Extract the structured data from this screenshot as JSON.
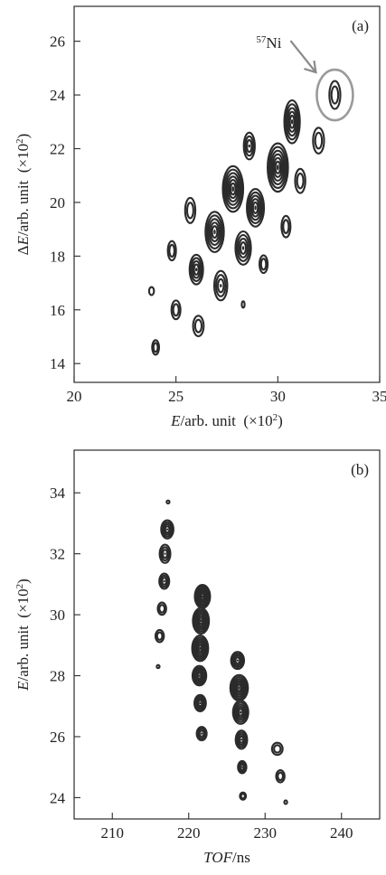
{
  "chart_data": [
    {
      "type": "contour",
      "panel_label": "(a)",
      "xlabel": {
        "italic": "E",
        "rest": "/arb. unit",
        "factor_pre": "(×10",
        "factor_exp": "2",
        "factor_post": ")"
      },
      "ylabel": {
        "prefix": "Δ",
        "italic": "E",
        "rest": "/arb. unit",
        "factor_pre": "(×10",
        "factor_exp": "2",
        "factor_post": ")"
      },
      "xlim": [
        20,
        35
      ],
      "ylim": [
        13.3,
        27.3
      ],
      "xticks": [
        20,
        25,
        30,
        35
      ],
      "yticks": [
        14,
        16,
        18,
        20,
        22,
        24,
        26
      ],
      "annotation": {
        "mass": "57",
        "symbol": "Ni",
        "target": [
          32.8,
          24.0
        ]
      },
      "islands": [
        {
          "x": 24.0,
          "y": 14.6,
          "rx": 0.17,
          "ry": 0.27,
          "levels": 2
        },
        {
          "x": 23.8,
          "y": 16.7,
          "rx": 0.12,
          "ry": 0.15,
          "levels": 1
        },
        {
          "x": 25.0,
          "y": 16.0,
          "rx": 0.22,
          "ry": 0.35,
          "levels": 2
        },
        {
          "x": 24.8,
          "y": 18.2,
          "rx": 0.2,
          "ry": 0.36,
          "levels": 2
        },
        {
          "x": 26.1,
          "y": 15.4,
          "rx": 0.26,
          "ry": 0.38,
          "levels": 2
        },
        {
          "x": 26.0,
          "y": 17.5,
          "rx": 0.33,
          "ry": 0.55,
          "levels": 4
        },
        {
          "x": 25.7,
          "y": 19.7,
          "rx": 0.25,
          "ry": 0.47,
          "levels": 2
        },
        {
          "x": 27.2,
          "y": 16.9,
          "rx": 0.32,
          "ry": 0.55,
          "levels": 3
        },
        {
          "x": 26.9,
          "y": 18.9,
          "rx": 0.45,
          "ry": 0.75,
          "levels": 5
        },
        {
          "x": 28.3,
          "y": 16.2,
          "rx": 0.06,
          "ry": 0.12,
          "levels": 1
        },
        {
          "x": 28.3,
          "y": 18.3,
          "rx": 0.38,
          "ry": 0.62,
          "levels": 4
        },
        {
          "x": 27.8,
          "y": 20.5,
          "rx": 0.5,
          "ry": 0.85,
          "levels": 6
        },
        {
          "x": 29.3,
          "y": 17.7,
          "rx": 0.2,
          "ry": 0.33,
          "levels": 2
        },
        {
          "x": 28.9,
          "y": 19.8,
          "rx": 0.42,
          "ry": 0.7,
          "levels": 5
        },
        {
          "x": 28.6,
          "y": 22.1,
          "rx": 0.27,
          "ry": 0.5,
          "levels": 3
        },
        {
          "x": 30.0,
          "y": 21.3,
          "rx": 0.5,
          "ry": 0.9,
          "levels": 6
        },
        {
          "x": 30.4,
          "y": 19.1,
          "rx": 0.22,
          "ry": 0.4,
          "levels": 2
        },
        {
          "x": 30.7,
          "y": 23.0,
          "rx": 0.38,
          "ry": 0.8,
          "levels": 5
        },
        {
          "x": 31.1,
          "y": 20.8,
          "rx": 0.25,
          "ry": 0.45,
          "levels": 2
        },
        {
          "x": 32.0,
          "y": 22.3,
          "rx": 0.27,
          "ry": 0.48,
          "levels": 2
        },
        {
          "x": 32.8,
          "y": 24.0,
          "rx": 0.27,
          "ry": 0.52,
          "levels": 2
        }
      ]
    },
    {
      "type": "contour",
      "panel_label": "(b)",
      "xlabel": {
        "italic": "TOF",
        "rest": "/ns"
      },
      "ylabel": {
        "italic": "E",
        "rest": "/arb. unit",
        "factor_pre": "(×10",
        "factor_exp": "2",
        "factor_post": ")"
      },
      "xlim": [
        205,
        245
      ],
      "ylim": [
        23.3,
        35.4
      ],
      "xticks": [
        210,
        220,
        230,
        240
      ],
      "yticks": [
        24,
        26,
        28,
        30,
        32,
        34
      ],
      "islands": [
        {
          "x": 217.3,
          "y": 33.7,
          "rx": 0.12,
          "ry": 0.05,
          "levels": 1
        },
        {
          "x": 217.2,
          "y": 32.8,
          "rx": 0.8,
          "ry": 0.3,
          "levels": 4
        },
        {
          "x": 216.9,
          "y": 32.0,
          "rx": 0.7,
          "ry": 0.3,
          "levels": 3
        },
        {
          "x": 216.8,
          "y": 31.1,
          "rx": 0.65,
          "ry": 0.25,
          "levels": 3
        },
        {
          "x": 216.5,
          "y": 30.2,
          "rx": 0.55,
          "ry": 0.2,
          "levels": 2
        },
        {
          "x": 216.2,
          "y": 29.3,
          "rx": 0.55,
          "ry": 0.2,
          "levels": 2
        },
        {
          "x": 216.0,
          "y": 28.3,
          "rx": 0.12,
          "ry": 0.05,
          "levels": 1
        },
        {
          "x": 221.8,
          "y": 30.6,
          "rx": 1.0,
          "ry": 0.38,
          "levels": 6
        },
        {
          "x": 221.6,
          "y": 29.8,
          "rx": 1.05,
          "ry": 0.42,
          "levels": 6
        },
        {
          "x": 221.5,
          "y": 28.9,
          "rx": 1.05,
          "ry": 0.42,
          "levels": 6
        },
        {
          "x": 221.4,
          "y": 28.0,
          "rx": 0.9,
          "ry": 0.32,
          "levels": 5
        },
        {
          "x": 221.5,
          "y": 27.1,
          "rx": 0.75,
          "ry": 0.27,
          "levels": 4
        },
        {
          "x": 221.7,
          "y": 26.1,
          "rx": 0.65,
          "ry": 0.22,
          "levels": 3
        },
        {
          "x": 226.4,
          "y": 28.5,
          "rx": 0.85,
          "ry": 0.28,
          "levels": 4
        },
        {
          "x": 226.6,
          "y": 27.6,
          "rx": 1.15,
          "ry": 0.42,
          "levels": 6
        },
        {
          "x": 226.8,
          "y": 26.8,
          "rx": 1.0,
          "ry": 0.38,
          "levels": 5
        },
        {
          "x": 226.9,
          "y": 25.9,
          "rx": 0.75,
          "ry": 0.3,
          "levels": 4
        },
        {
          "x": 227.0,
          "y": 25.0,
          "rx": 0.55,
          "ry": 0.2,
          "levels": 3
        },
        {
          "x": 227.1,
          "y": 24.05,
          "rx": 0.4,
          "ry": 0.12,
          "levels": 2
        },
        {
          "x": 231.6,
          "y": 25.6,
          "rx": 0.7,
          "ry": 0.2,
          "levels": 2
        },
        {
          "x": 232.0,
          "y": 24.7,
          "rx": 0.55,
          "ry": 0.2,
          "levels": 2
        },
        {
          "x": 232.7,
          "y": 23.85,
          "rx": 0.15,
          "ry": 0.06,
          "levels": 1
        }
      ]
    }
  ]
}
